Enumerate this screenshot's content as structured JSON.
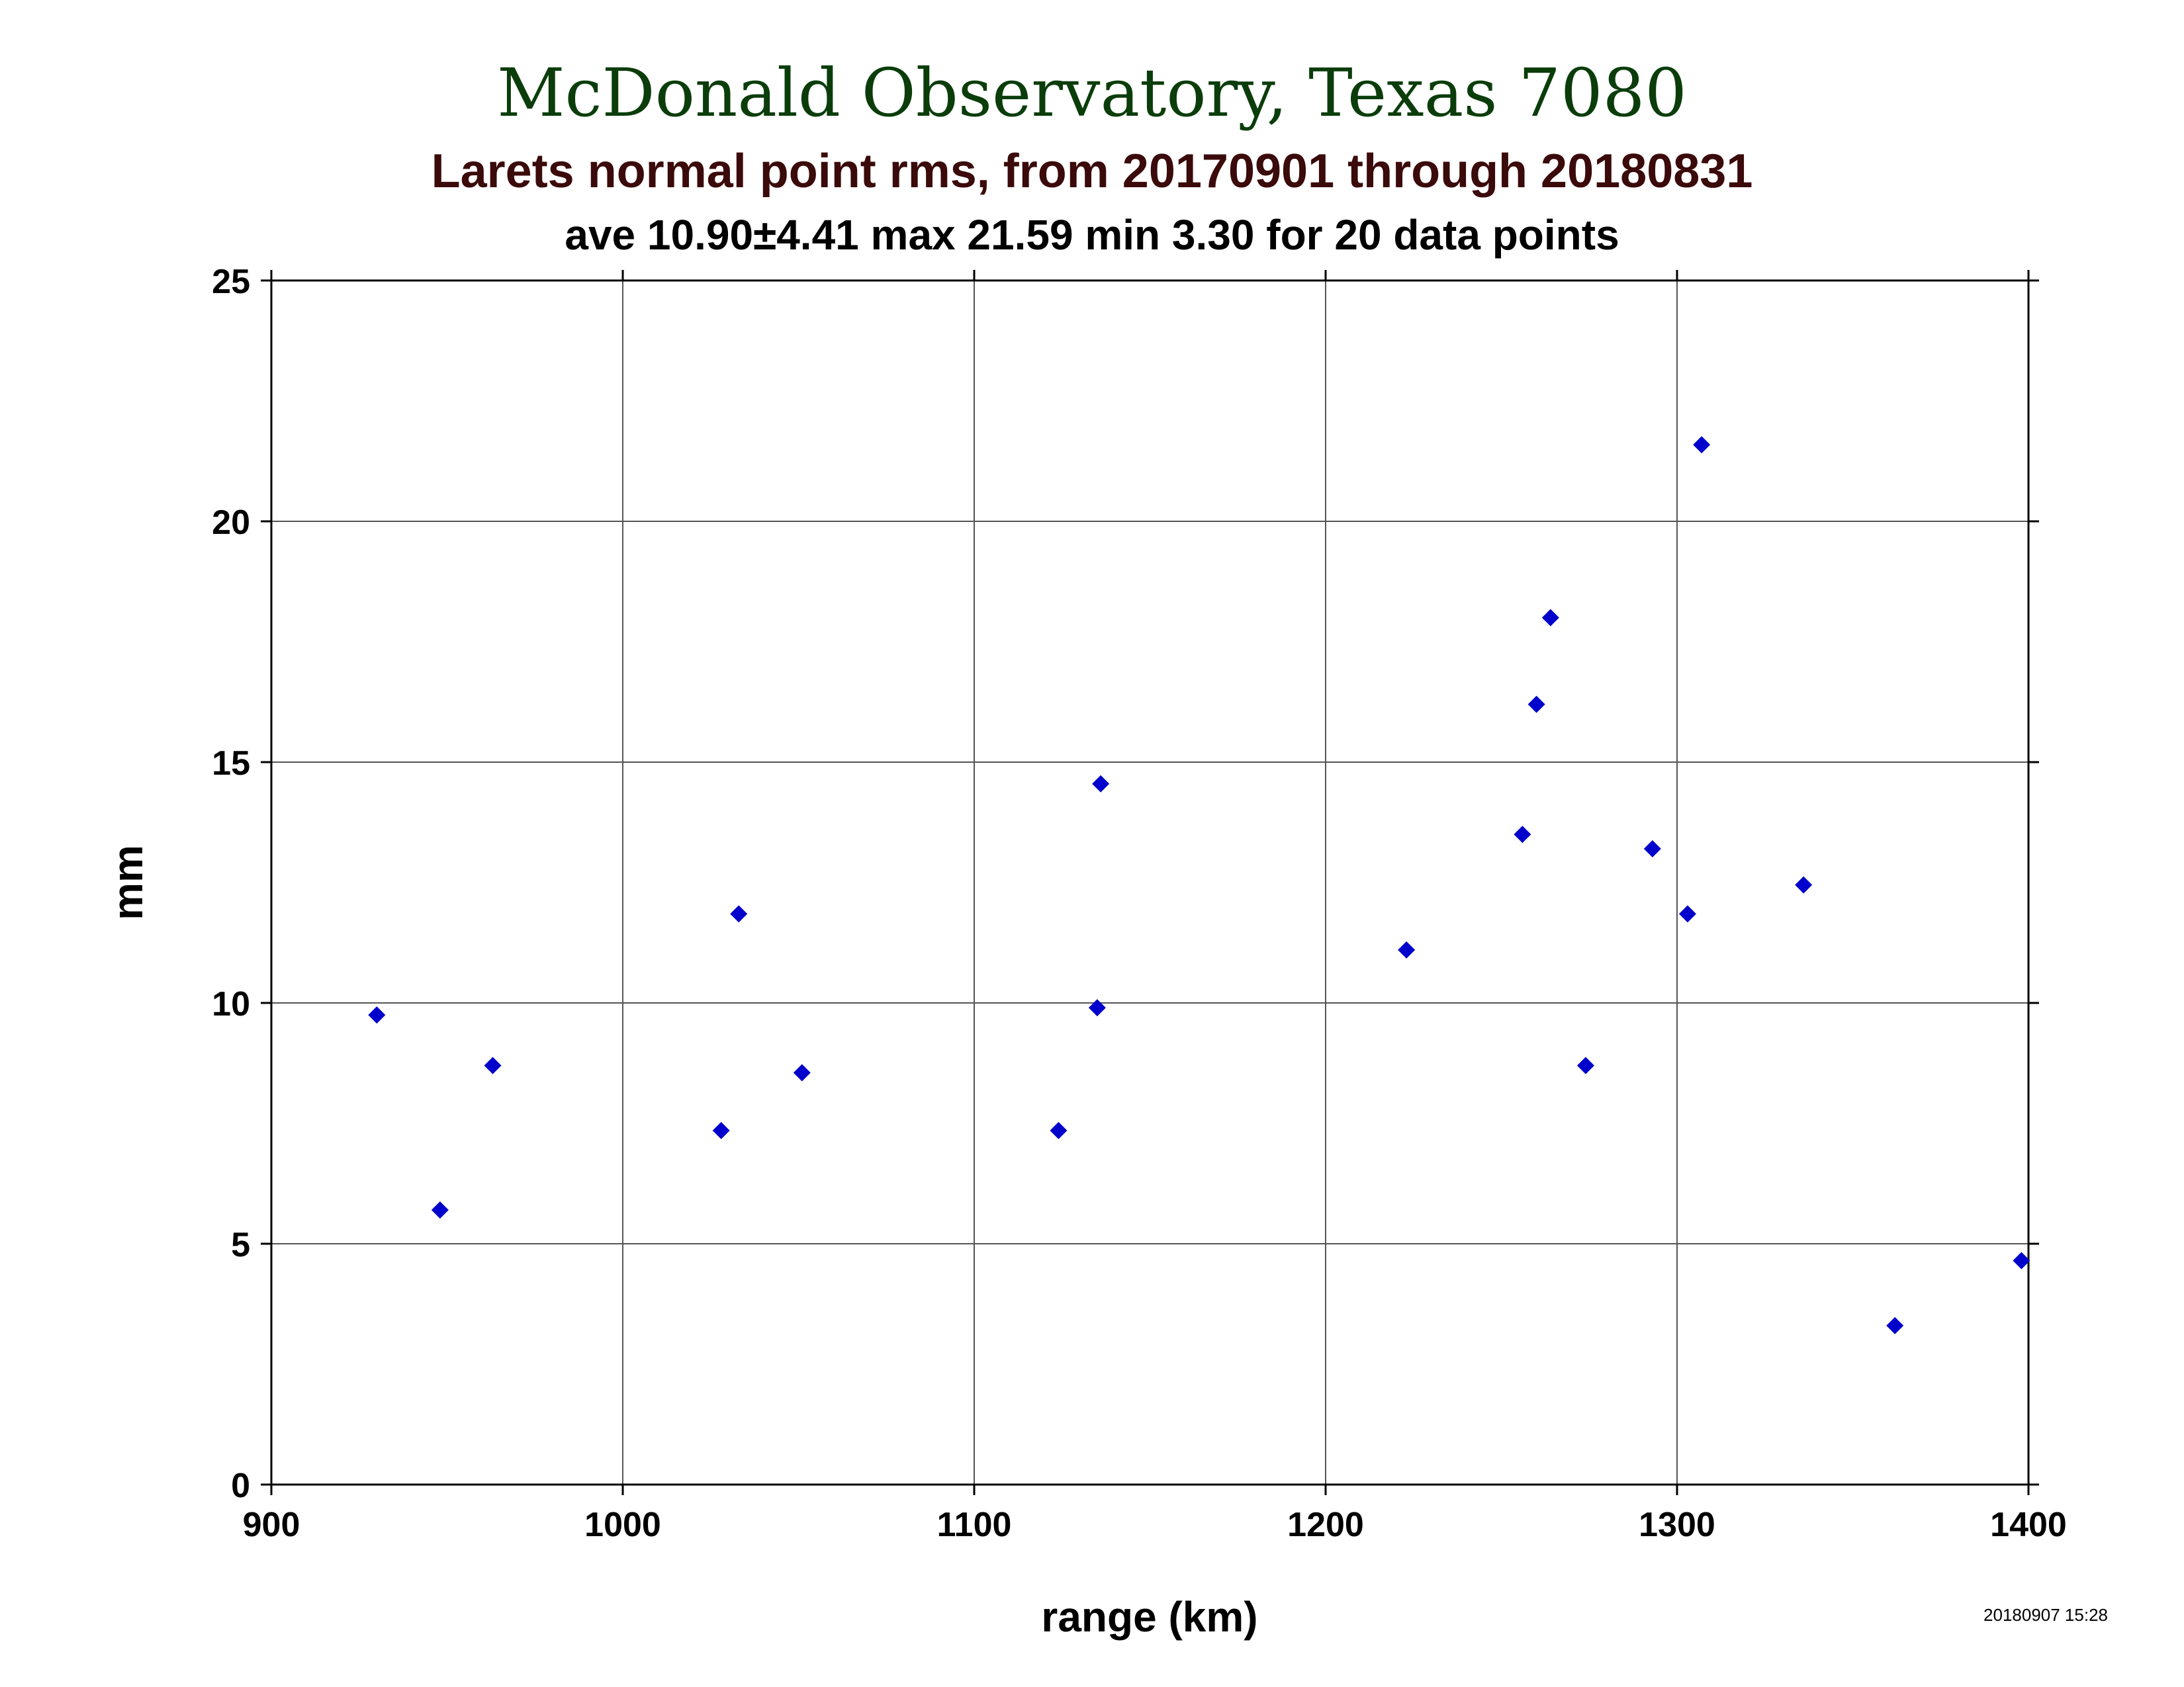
{
  "chart_data": {
    "type": "scatter",
    "title": "McDonald Observatory, Texas 7080",
    "subtitle": "Larets normal point rms, from 20170901 through 20180831",
    "stats_line": "ave 10.90±4.41 max 21.59 min 3.30 for 20 data points",
    "xlabel": "range (km)",
    "ylabel": "mm",
    "xlim": [
      900,
      1400
    ],
    "ylim": [
      0,
      25
    ],
    "xticks": [
      900,
      1000,
      1100,
      1200,
      1300,
      1400
    ],
    "yticks": [
      0,
      5,
      10,
      15,
      20,
      25
    ],
    "grid": true,
    "marker": "diamond",
    "point_color": "#0000cc",
    "points": [
      {
        "x": 930,
        "y": 9.75
      },
      {
        "x": 948,
        "y": 5.7
      },
      {
        "x": 963,
        "y": 8.7
      },
      {
        "x": 1028,
        "y": 7.35
      },
      {
        "x": 1033,
        "y": 11.85
      },
      {
        "x": 1051,
        "y": 8.55
      },
      {
        "x": 1124,
        "y": 7.35
      },
      {
        "x": 1135,
        "y": 9.9
      },
      {
        "x": 1136,
        "y": 14.55
      },
      {
        "x": 1223,
        "y": 11.1
      },
      {
        "x": 1256,
        "y": 13.5
      },
      {
        "x": 1260,
        "y": 16.2
      },
      {
        "x": 1264,
        "y": 18.0
      },
      {
        "x": 1274,
        "y": 8.7
      },
      {
        "x": 1293,
        "y": 13.2
      },
      {
        "x": 1303,
        "y": 11.85
      },
      {
        "x": 1307,
        "y": 21.59
      },
      {
        "x": 1336,
        "y": 12.45
      },
      {
        "x": 1362,
        "y": 3.3
      },
      {
        "x": 1398,
        "y": 4.65
      }
    ]
  },
  "timestamp": "20180907 15:28"
}
